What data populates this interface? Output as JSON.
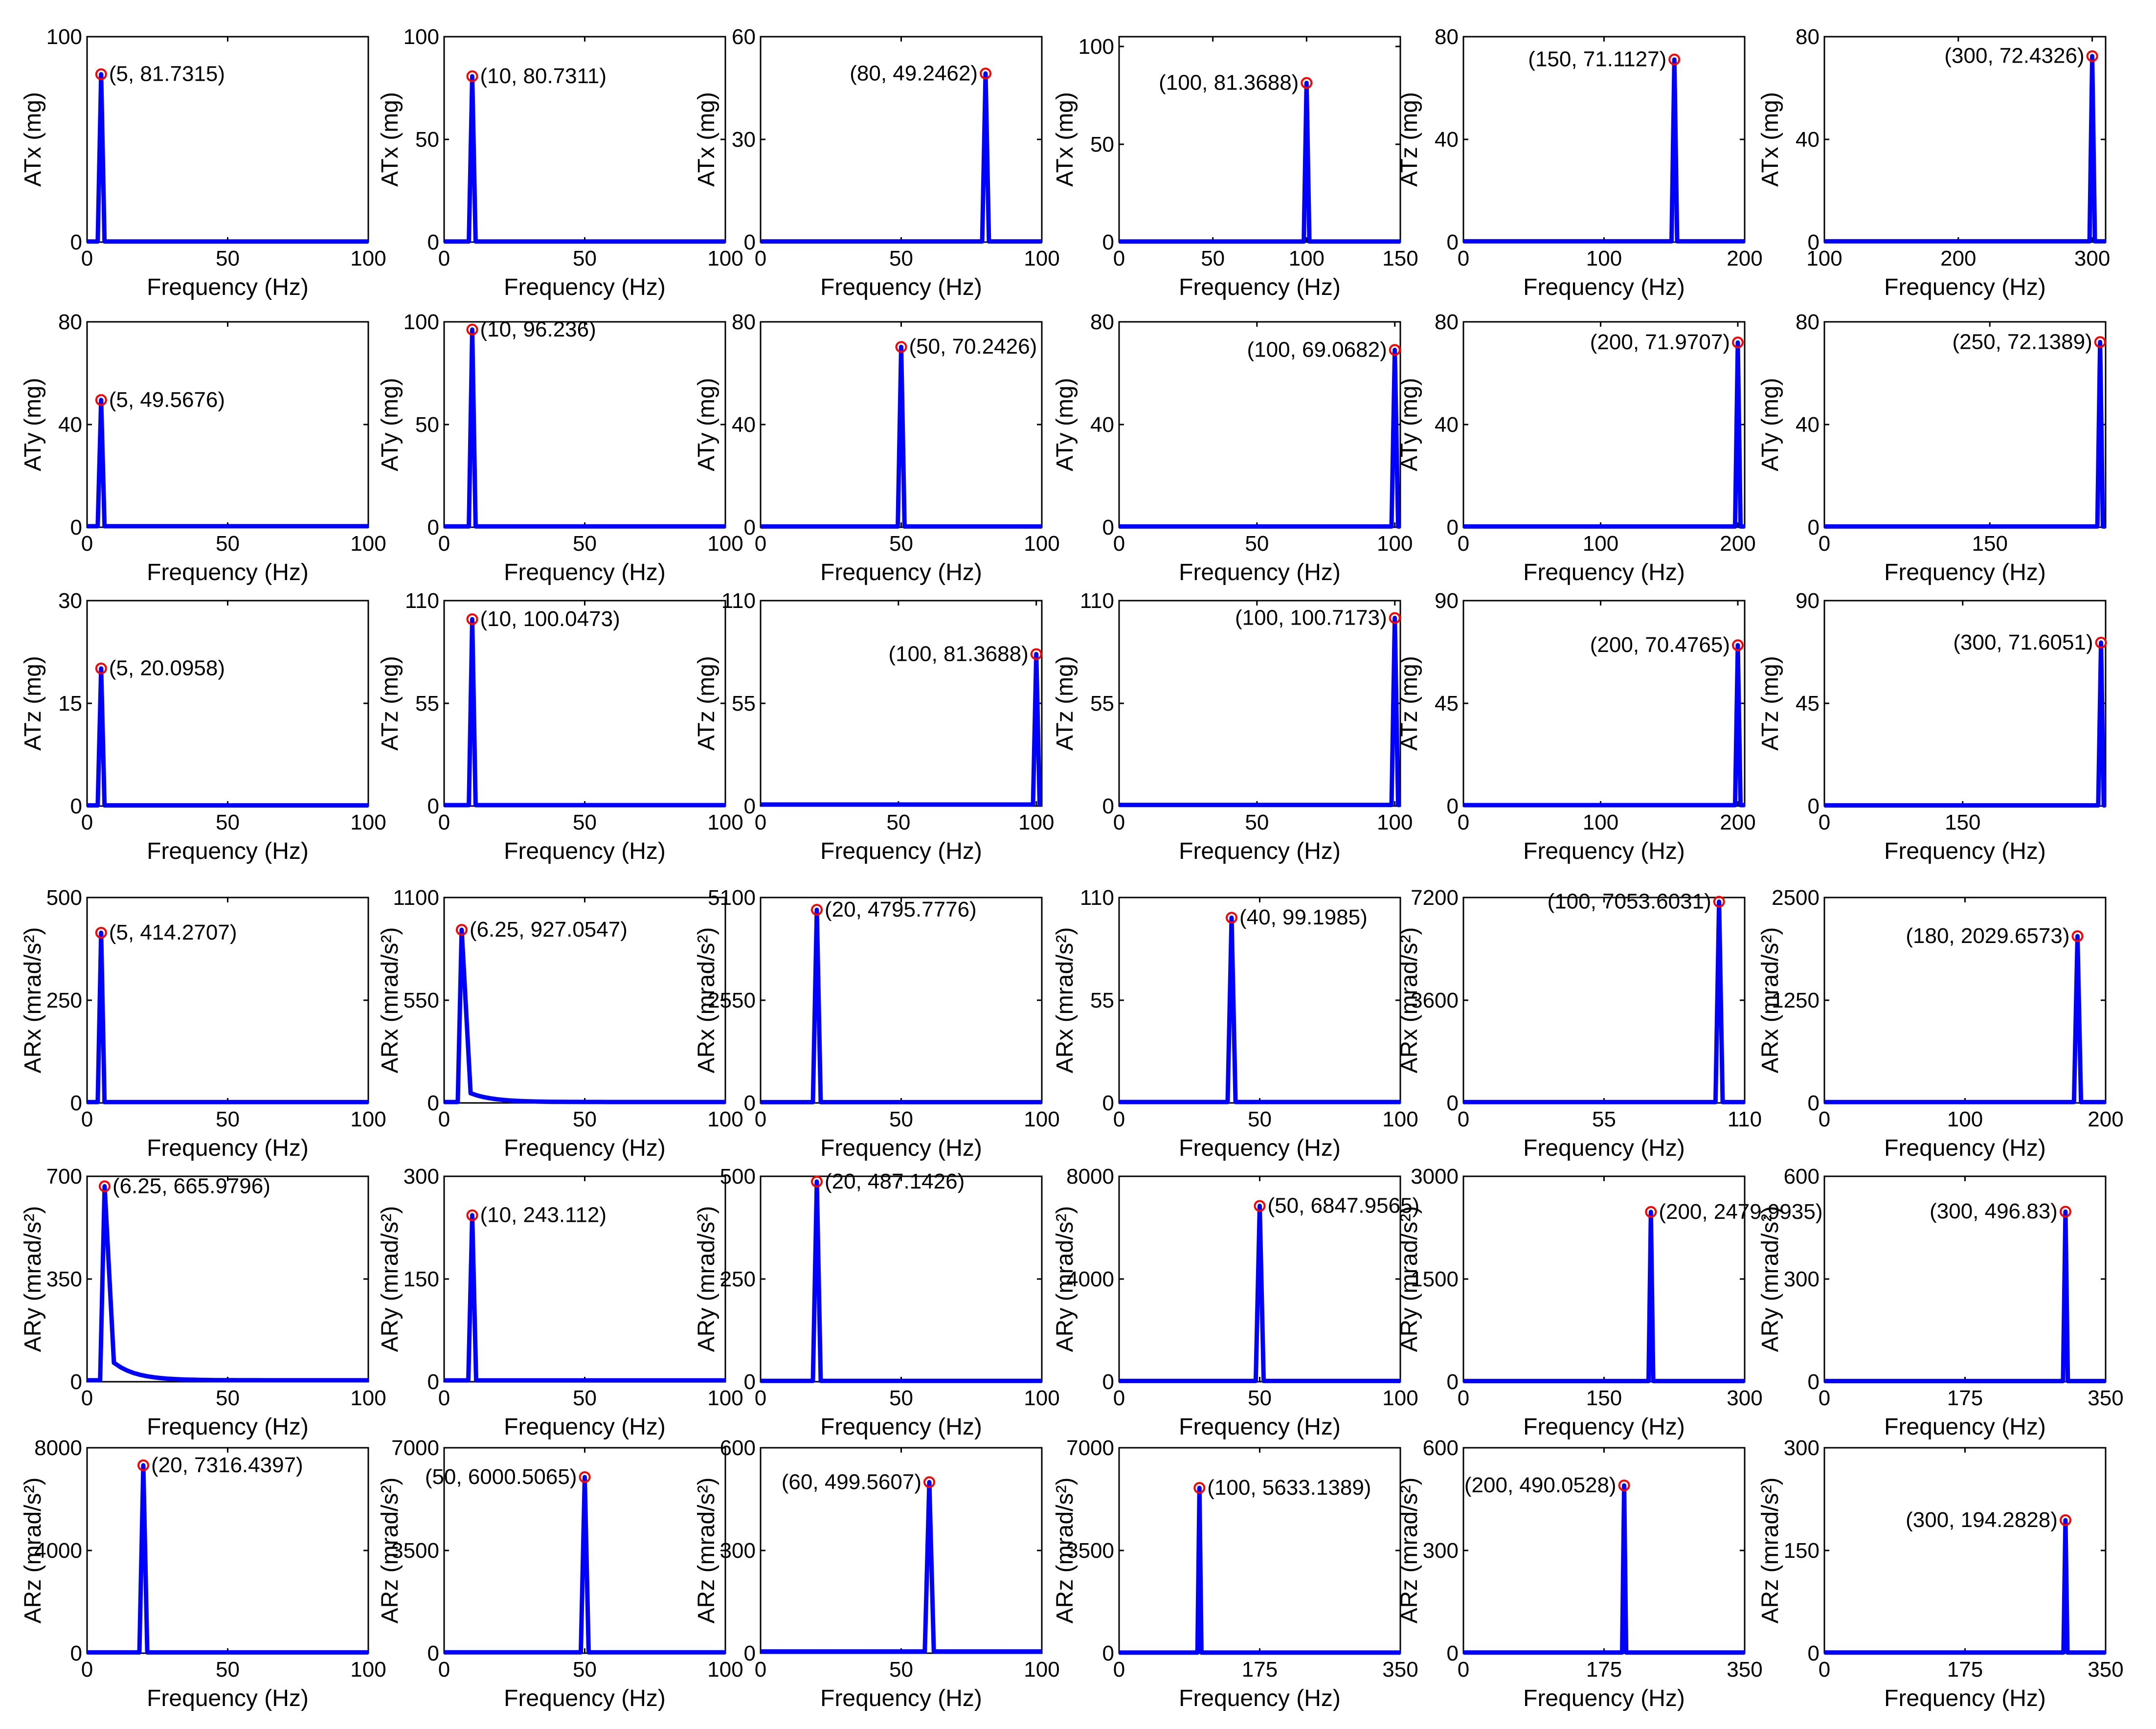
{
  "chart_data": [
    {
      "type": "line",
      "xlabel": "Frequency (Hz)",
      "ylabel": "ATx (mg)",
      "xticks": [
        0,
        50,
        100
      ],
      "yticks": [
        0,
        100
      ],
      "xlim": [
        0,
        100
      ],
      "ylim": [
        0,
        100
      ],
      "peak": {
        "x": 5,
        "y": 81.7315
      },
      "peak_label": "(5, 81.7315)",
      "label_side": "right",
      "peak_width": 1.2,
      "baseline": 0.3,
      "tail": 0
    },
    {
      "type": "line",
      "xlabel": "Frequency (Hz)",
      "ylabel": "ATx (mg)",
      "xticks": [
        0,
        50,
        100
      ],
      "yticks": [
        0,
        50,
        100
      ],
      "xlim": [
        0,
        100
      ],
      "ylim": [
        0,
        100
      ],
      "peak": {
        "x": 10,
        "y": 80.7311
      },
      "peak_label": "(10, 80.7311)",
      "label_side": "right",
      "peak_width": 1.2,
      "baseline": 0.3,
      "tail": 0
    },
    {
      "type": "line",
      "xlabel": "Frequency (Hz)",
      "ylabel": "ATx (mg)",
      "xticks": [
        0,
        50,
        100
      ],
      "yticks": [
        0,
        30,
        60
      ],
      "xlim": [
        0,
        100
      ],
      "ylim": [
        0,
        60
      ],
      "peak": {
        "x": 80,
        "y": 49.2462
      },
      "peak_label": "(80, 49.2462)",
      "label_side": "left",
      "peak_width": 1.2,
      "baseline": 0.2,
      "tail": 0
    },
    {
      "type": "line",
      "xlabel": "Frequency (Hz)",
      "ylabel": "ATx (mg)",
      "xticks": [
        0,
        50,
        100,
        150
      ],
      "yticks": [
        0,
        50,
        100
      ],
      "xlim": [
        0,
        150
      ],
      "ylim": [
        0,
        105
      ],
      "peak": {
        "x": 100,
        "y": 81.3688
      },
      "peak_label": "(100, 81.3688)",
      "label_side": "left",
      "peak_width": 1.5,
      "baseline": 0.3,
      "tail": 0
    },
    {
      "type": "line",
      "xlabel": "Frequency (Hz)",
      "ylabel": "ATz (mg)",
      "xticks": [
        0,
        100,
        200
      ],
      "yticks": [
        0,
        40,
        80
      ],
      "xlim": [
        0,
        200
      ],
      "ylim": [
        0,
        80
      ],
      "peak": {
        "x": 150,
        "y": 71.1127
      },
      "peak_label": "(150, 71.1127)",
      "label_side": "left",
      "peak_width": 2,
      "baseline": 0.3,
      "tail": 0
    },
    {
      "type": "line",
      "xlabel": "Frequency (Hz)",
      "ylabel": "ATx (mg)",
      "xticks": [
        100,
        200,
        300
      ],
      "yticks": [
        0,
        40,
        80
      ],
      "xlim": [
        100,
        310
      ],
      "ylim": [
        0,
        80
      ],
      "peak": {
        "x": 300,
        "y": 72.4326
      },
      "peak_label": "(300, 72.4326)",
      "label_side": "left",
      "peak_width": 2,
      "baseline": 0.3,
      "tail": 0
    },
    {
      "type": "line",
      "xlabel": "Frequency (Hz)",
      "ylabel": "ATy (mg)",
      "xticks": [
        0,
        50,
        100
      ],
      "yticks": [
        0,
        40,
        80
      ],
      "xlim": [
        0,
        100
      ],
      "ylim": [
        0,
        80
      ],
      "peak": {
        "x": 5,
        "y": 49.5676
      },
      "peak_label": "(5, 49.5676)",
      "label_side": "right",
      "peak_width": 1.2,
      "baseline": 0.4,
      "tail": 0
    },
    {
      "type": "line",
      "xlabel": "Frequency (Hz)",
      "ylabel": "ATy (mg)",
      "xticks": [
        0,
        50,
        100
      ],
      "yticks": [
        0,
        50,
        100
      ],
      "xlim": [
        0,
        100
      ],
      "ylim": [
        0,
        100
      ],
      "peak": {
        "x": 10,
        "y": 96.236
      },
      "peak_label": "(10, 96.236)",
      "label_side": "right",
      "peak_width": 1.2,
      "baseline": 0.4,
      "tail": 0
    },
    {
      "type": "line",
      "xlabel": "Frequency (Hz)",
      "ylabel": "ATy (mg)",
      "xticks": [
        0,
        50,
        100
      ],
      "yticks": [
        0,
        40,
        80
      ],
      "xlim": [
        0,
        100
      ],
      "ylim": [
        0,
        80
      ],
      "peak": {
        "x": 50,
        "y": 70.2426
      },
      "peak_label": "(50, 70.2426)",
      "label_side": "right",
      "peak_width": 1.2,
      "baseline": 0.3,
      "tail": 0
    },
    {
      "type": "line",
      "xlabel": "Frequency (Hz)",
      "ylabel": "ATy (mg)",
      "xticks": [
        0,
        50,
        100
      ],
      "yticks": [
        0,
        40,
        80
      ],
      "xlim": [
        0,
        102
      ],
      "ylim": [
        0,
        80
      ],
      "peak": {
        "x": 100,
        "y": 69.0682
      },
      "peak_label": "(100, 69.0682)",
      "label_side": "left",
      "peak_width": 1.2,
      "baseline": 0.3,
      "tail": 0
    },
    {
      "type": "line",
      "xlabel": "Frequency (Hz)",
      "ylabel": "ATy (mg)",
      "xticks": [
        0,
        100,
        200
      ],
      "yticks": [
        0,
        40,
        80
      ],
      "xlim": [
        0,
        205
      ],
      "ylim": [
        0,
        80
      ],
      "peak": {
        "x": 200,
        "y": 71.9707
      },
      "peak_label": "(200, 71.9707)",
      "label_side": "left",
      "peak_width": 2,
      "baseline": 0.3,
      "tail": 0
    },
    {
      "type": "line",
      "xlabel": "Frequency (Hz)",
      "ylabel": "ATy (mg)",
      "xticks": [
        0,
        150
      ],
      "yticks": [
        0,
        40,
        80
      ],
      "xlim": [
        0,
        255
      ],
      "ylim": [
        0,
        80
      ],
      "peak": {
        "x": 250,
        "y": 72.1389
      },
      "peak_label": "(250, 72.1389)",
      "label_side": "left",
      "peak_width": 2.5,
      "baseline": 0.3,
      "tail": 0
    },
    {
      "type": "line",
      "xlabel": "Frequency (Hz)",
      "ylabel": "ATz (mg)",
      "xticks": [
        0,
        50,
        100
      ],
      "yticks": [
        0,
        15,
        30
      ],
      "xlim": [
        0,
        100
      ],
      "ylim": [
        0,
        30
      ],
      "peak": {
        "x": 5,
        "y": 20.0958
      },
      "peak_label": "(5, 20.0958)",
      "label_side": "right",
      "peak_width": 1.2,
      "baseline": 0.1,
      "tail": 0
    },
    {
      "type": "line",
      "xlabel": "Frequency (Hz)",
      "ylabel": "ATz (mg)",
      "xticks": [
        0,
        50,
        100
      ],
      "yticks": [
        0,
        55,
        110
      ],
      "xlim": [
        0,
        100
      ],
      "ylim": [
        0,
        110
      ],
      "peak": {
        "x": 10,
        "y": 100.0473
      },
      "peak_label": "(10, 100.0473)",
      "label_side": "right",
      "peak_width": 1.2,
      "baseline": 0.5,
      "tail": 0
    },
    {
      "type": "line",
      "xlabel": "Frequency (Hz)",
      "ylabel": "ATz (mg)",
      "xticks": [
        0,
        50,
        100
      ],
      "yticks": [
        0,
        55,
        110
      ],
      "xlim": [
        0,
        102
      ],
      "ylim": [
        0,
        110
      ],
      "peak": {
        "x": 100,
        "y": 81.3688
      },
      "peak_label": "(100, 81.3688)",
      "label_side": "left",
      "peak_width": 1.2,
      "baseline": 0.8,
      "tail": 0
    },
    {
      "type": "line",
      "xlabel": "Frequency (Hz)",
      "ylabel": "ATz (mg)",
      "xticks": [
        0,
        50,
        100
      ],
      "yticks": [
        0,
        55,
        110
      ],
      "xlim": [
        0,
        102
      ],
      "ylim": [
        0,
        110
      ],
      "peak": {
        "x": 100,
        "y": 100.7173
      },
      "peak_label": "(100, 100.7173)",
      "label_side": "left",
      "peak_width": 1.2,
      "baseline": 0.6,
      "tail": 0
    },
    {
      "type": "line",
      "xlabel": "Frequency (Hz)",
      "ylabel": "ATz (mg)",
      "xticks": [
        0,
        100,
        200
      ],
      "yticks": [
        0,
        45,
        90
      ],
      "xlim": [
        0,
        205
      ],
      "ylim": [
        0,
        90
      ],
      "peak": {
        "x": 200,
        "y": 70.4765
      },
      "peak_label": "(200, 70.4765)",
      "label_side": "left",
      "peak_width": 2,
      "baseline": 0.4,
      "tail": 0
    },
    {
      "type": "line",
      "xlabel": "Frequency (Hz)",
      "ylabel": "ATz (mg)",
      "xticks": [
        0,
        150
      ],
      "yticks": [
        0,
        45,
        90
      ],
      "xlim": [
        0,
        305
      ],
      "ylim": [
        0,
        90
      ],
      "peak": {
        "x": 300,
        "y": 71.6051
      },
      "peak_label": "(300, 71.6051)",
      "label_side": "left",
      "peak_width": 3,
      "baseline": 0.3,
      "tail": 0
    },
    {
      "type": "line",
      "xlabel": "Frequency (Hz)",
      "ylabel": "ARx (mrad/s²)",
      "xticks": [
        0,
        50,
        100
      ],
      "yticks": [
        0,
        250,
        500
      ],
      "xlim": [
        0,
        100
      ],
      "ylim": [
        0,
        500
      ],
      "peak": {
        "x": 5,
        "y": 414.2707
      },
      "peak_label": "(5, 414.2707)",
      "label_side": "right",
      "peak_width": 1.2,
      "baseline": 2,
      "tail": 0
    },
    {
      "type": "line",
      "xlabel": "Frequency (Hz)",
      "ylabel": "ARx (mrad/s²)",
      "xticks": [
        0,
        50,
        100
      ],
      "yticks": [
        0,
        550,
        1100
      ],
      "xlim": [
        0,
        100
      ],
      "ylim": [
        0,
        1100
      ],
      "peak": {
        "x": 6.25,
        "y": 927.0547
      },
      "peak_label": "(6.25, 927.0547)",
      "label_side": "right",
      "peak_width": 1.4,
      "baseline": 5,
      "tail": 70
    },
    {
      "type": "line",
      "xlabel": "Frequency (Hz)",
      "ylabel": "ARx (mrad/s²)",
      "xticks": [
        0,
        50,
        100
      ],
      "yticks": [
        0,
        2550,
        5100
      ],
      "xlim": [
        0,
        100
      ],
      "ylim": [
        0,
        5100
      ],
      "peak": {
        "x": 20,
        "y": 4795.7776
      },
      "peak_label": "(20, 4795.7776)",
      "label_side": "right",
      "peak_width": 1.4,
      "baseline": 20,
      "tail": 0
    },
    {
      "type": "line",
      "xlabel": "Frequency (Hz)",
      "ylabel": "ARx (mrad/s²)",
      "xticks": [
        0,
        50,
        100
      ],
      "yticks": [
        0,
        55,
        110
      ],
      "xlim": [
        0,
        100
      ],
      "ylim": [
        0,
        110
      ],
      "peak": {
        "x": 40,
        "y": 99.1985
      },
      "peak_label": "(40, 99.1985)",
      "label_side": "right",
      "peak_width": 1.4,
      "baseline": 0.5,
      "tail": 0
    },
    {
      "type": "line",
      "xlabel": "Frequency (Hz)",
      "ylabel": "ARx (mrad/s²)",
      "xticks": [
        0,
        55,
        110
      ],
      "yticks": [
        0,
        3600,
        7200
      ],
      "xlim": [
        0,
        110
      ],
      "ylim": [
        0,
        7200
      ],
      "peak": {
        "x": 100,
        "y": 7053.6031
      },
      "peak_label": "(100, 7053.6031)",
      "label_side": "left",
      "peak_width": 1.4,
      "baseline": 30,
      "tail": 0
    },
    {
      "type": "line",
      "xlabel": "Frequency (Hz)",
      "ylabel": "ARx (mrad/s²)",
      "xticks": [
        0,
        100,
        200
      ],
      "yticks": [
        0,
        1250,
        2500
      ],
      "xlim": [
        0,
        200
      ],
      "ylim": [
        0,
        2500
      ],
      "peak": {
        "x": 180,
        "y": 2029.6573
      },
      "peak_label": "(180, 2029.6573)",
      "label_side": "left",
      "peak_width": 2.5,
      "baseline": 10,
      "tail": 0
    },
    {
      "type": "line",
      "xlabel": "Frequency (Hz)",
      "ylabel": "ARy (mrad/s²)",
      "xticks": [
        0,
        50,
        100
      ],
      "yticks": [
        0,
        350,
        700
      ],
      "xlim": [
        0,
        100
      ],
      "ylim": [
        0,
        700
      ],
      "peak": {
        "x": 6.25,
        "y": 665.9796
      },
      "peak_label": "(6.25, 665.9796)",
      "label_side": "right",
      "peak_width": 1.6,
      "baseline": 5,
      "tail": 90
    },
    {
      "type": "line",
      "xlabel": "Frequency (Hz)",
      "ylabel": "ARy (mrad/s²)",
      "xticks": [
        0,
        50,
        100
      ],
      "yticks": [
        0,
        150,
        300
      ],
      "xlim": [
        0,
        100
      ],
      "ylim": [
        0,
        300
      ],
      "peak": {
        "x": 10,
        "y": 243.112
      },
      "peak_label": "(10, 243.112)",
      "label_side": "right",
      "peak_width": 1.4,
      "baseline": 2,
      "tail": 0
    },
    {
      "type": "line",
      "xlabel": "Frequency (Hz)",
      "ylabel": "ARy (mrad/s²)",
      "xticks": [
        0,
        50,
        100
      ],
      "yticks": [
        0,
        250,
        500
      ],
      "xlim": [
        0,
        100
      ],
      "ylim": [
        0,
        500
      ],
      "peak": {
        "x": 20,
        "y": 487.1426
      },
      "peak_label": "(20, 487.1426)",
      "label_side": "right",
      "peak_width": 1.4,
      "baseline": 2,
      "tail": 0
    },
    {
      "type": "line",
      "xlabel": "Frequency (Hz)",
      "ylabel": "ARy (mrad/s²)",
      "xticks": [
        0,
        50,
        100
      ],
      "yticks": [
        0,
        4000,
        8000
      ],
      "xlim": [
        0,
        100
      ],
      "ylim": [
        0,
        8000
      ],
      "peak": {
        "x": 50,
        "y": 6847.9565
      },
      "peak_label": "(50, 6847.9565)",
      "label_side": "right",
      "peak_width": 1.4,
      "baseline": 30,
      "tail": 0
    },
    {
      "type": "line",
      "xlabel": "Frequency (Hz)",
      "ylabel": "ARy (mrad/s²)",
      "xticks": [
        0,
        150,
        300
      ],
      "yticks": [
        0,
        1500,
        3000
      ],
      "xlim": [
        0,
        300
      ],
      "ylim": [
        0,
        3000
      ],
      "peak": {
        "x": 200,
        "y": 2479.9935
      },
      "peak_label": "(200, 2479.9935)",
      "label_side": "right",
      "peak_width": 2.5,
      "baseline": 10,
      "tail": 0
    },
    {
      "type": "line",
      "xlabel": "Frequency (Hz)",
      "ylabel": "ARy (mrad/s²)",
      "xticks": [
        0,
        175,
        350
      ],
      "yticks": [
        0,
        300,
        600
      ],
      "xlim": [
        0,
        350
      ],
      "ylim": [
        0,
        600
      ],
      "peak": {
        "x": 300,
        "y": 496.83
      },
      "peak_label": "(300, 496.83)",
      "label_side": "left",
      "peak_width": 3,
      "baseline": 2,
      "tail": 0
    },
    {
      "type": "line",
      "xlabel": "Frequency (Hz)",
      "ylabel": "ARz (mrad/s²)",
      "xticks": [
        0,
        50,
        100
      ],
      "yticks": [
        0,
        4000,
        8000
      ],
      "xlim": [
        0,
        100
      ],
      "ylim": [
        0,
        8000
      ],
      "peak": {
        "x": 20,
        "y": 7316.4397
      },
      "peak_label": "(20, 7316.4397)",
      "label_side": "right",
      "peak_width": 1.4,
      "baseline": 30,
      "tail": 0
    },
    {
      "type": "line",
      "xlabel": "Frequency (Hz)",
      "ylabel": "ARz (mrad/s²)",
      "xticks": [
        0,
        50,
        100
      ],
      "yticks": [
        0,
        3500,
        7000
      ],
      "xlim": [
        0,
        100
      ],
      "ylim": [
        0,
        7000
      ],
      "peak": {
        "x": 50,
        "y": 6000.5065
      },
      "peak_label": "(50, 6000.5065)",
      "label_side": "left",
      "peak_width": 1.4,
      "baseline": 30,
      "tail": 0
    },
    {
      "type": "line",
      "xlabel": "Frequency (Hz)",
      "ylabel": "ARz (mrad/s²)",
      "xticks": [
        0,
        50,
        100
      ],
      "yticks": [
        0,
        300,
        600
      ],
      "xlim": [
        0,
        100
      ],
      "ylim": [
        0,
        600
      ],
      "peak": {
        "x": 60,
        "y": 499.5607
      },
      "peak_label": "(60, 499.5607)",
      "label_side": "left",
      "peak_width": 1.6,
      "baseline": 5,
      "tail": 0
    },
    {
      "type": "line",
      "xlabel": "Frequency (Hz)",
      "ylabel": "ARz (mrad/s²)",
      "xticks": [
        0,
        175,
        350
      ],
      "yticks": [
        0,
        3500,
        7000
      ],
      "xlim": [
        0,
        350
      ],
      "ylim": [
        0,
        7000
      ],
      "peak": {
        "x": 100,
        "y": 5633.1389
      },
      "peak_label": "(100, 5633.1389)",
      "label_side": "right",
      "peak_width": 2.5,
      "baseline": 20,
      "tail": 0
    },
    {
      "type": "line",
      "xlabel": "Frequency (Hz)",
      "ylabel": "ARz (mrad/s²)",
      "xticks": [
        0,
        175,
        350
      ],
      "yticks": [
        0,
        300,
        600
      ],
      "xlim": [
        0,
        350
      ],
      "ylim": [
        0,
        600
      ],
      "peak": {
        "x": 200,
        "y": 490.0528
      },
      "peak_label": "(200, 490.0528)",
      "label_side": "left",
      "peak_width": 2.5,
      "baseline": 2,
      "tail": 0
    },
    {
      "type": "line",
      "xlabel": "Frequency (Hz)",
      "ylabel": "ARz (mrad/s²)",
      "xticks": [
        0,
        175,
        350
      ],
      "yticks": [
        0,
        150,
        300
      ],
      "xlim": [
        0,
        350
      ],
      "ylim": [
        0,
        300
      ],
      "peak": {
        "x": 300,
        "y": 194.2828
      },
      "peak_label": "(300, 194.2828)",
      "label_side": "left",
      "peak_width": 2.5,
      "baseline": 1,
      "tail": 0
    }
  ]
}
